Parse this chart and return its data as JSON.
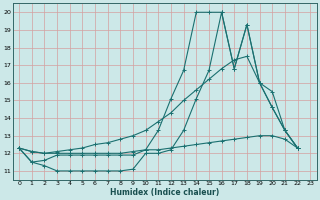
{
  "xlabel": "Humidex (Indice chaleur)",
  "xlim": [
    -0.5,
    23.5
  ],
  "ylim": [
    10.5,
    20.5
  ],
  "xticks": [
    0,
    1,
    2,
    3,
    4,
    5,
    6,
    7,
    8,
    9,
    10,
    11,
    12,
    13,
    14,
    15,
    16,
    17,
    18,
    19,
    20,
    21,
    22,
    23
  ],
  "yticks": [
    11,
    12,
    13,
    14,
    15,
    16,
    17,
    18,
    19,
    20
  ],
  "background_color": "#cce8e8",
  "grid_color": "#aacccc",
  "line_color": "#1a7070",
  "line1_x": [
    0,
    1,
    2,
    3,
    4,
    5,
    6,
    7,
    8,
    9,
    10,
    11,
    12,
    13,
    14,
    15,
    16,
    17,
    18,
    19,
    20,
    21,
    22
  ],
  "line1_y": [
    12.3,
    11.5,
    11.6,
    11.9,
    11.9,
    11.9,
    11.9,
    11.9,
    11.9,
    11.9,
    12.2,
    13.3,
    15.1,
    16.7,
    20.0,
    20.0,
    20.0,
    16.8,
    19.3,
    16.0,
    14.6,
    13.3,
    12.3
  ],
  "line2_x": [
    0,
    1,
    2,
    3,
    4,
    5,
    6,
    7,
    8,
    9,
    10,
    11,
    12,
    13,
    14,
    15,
    16,
    17,
    18,
    19,
    20,
    21,
    22
  ],
  "line2_y": [
    12.3,
    11.5,
    11.3,
    11.0,
    11.0,
    11.0,
    11.0,
    11.0,
    11.0,
    11.1,
    12.0,
    12.0,
    12.2,
    13.3,
    15.1,
    16.7,
    20.0,
    16.8,
    19.3,
    16.0,
    14.6,
    13.3,
    12.3
  ],
  "line3_x": [
    0,
    1,
    2,
    3,
    4,
    5,
    6,
    7,
    8,
    9,
    10,
    11,
    12,
    13,
    14,
    15,
    16,
    17,
    18,
    19,
    20,
    21,
    22
  ],
  "line3_y": [
    12.3,
    12.1,
    12.0,
    12.1,
    12.2,
    12.3,
    12.5,
    12.6,
    12.8,
    13.0,
    13.3,
    13.8,
    14.3,
    15.0,
    15.6,
    16.2,
    16.8,
    17.3,
    17.5,
    16.0,
    15.5,
    13.3,
    12.3
  ],
  "line4_x": [
    0,
    1,
    2,
    3,
    4,
    5,
    6,
    7,
    8,
    9,
    10,
    11,
    12,
    13,
    14,
    15,
    16,
    17,
    18,
    19,
    20,
    21,
    22
  ],
  "line4_y": [
    12.3,
    12.1,
    12.0,
    12.0,
    12.0,
    12.0,
    12.0,
    12.0,
    12.0,
    12.1,
    12.2,
    12.2,
    12.3,
    12.4,
    12.5,
    12.6,
    12.7,
    12.8,
    12.9,
    13.0,
    13.0,
    12.8,
    12.3
  ]
}
